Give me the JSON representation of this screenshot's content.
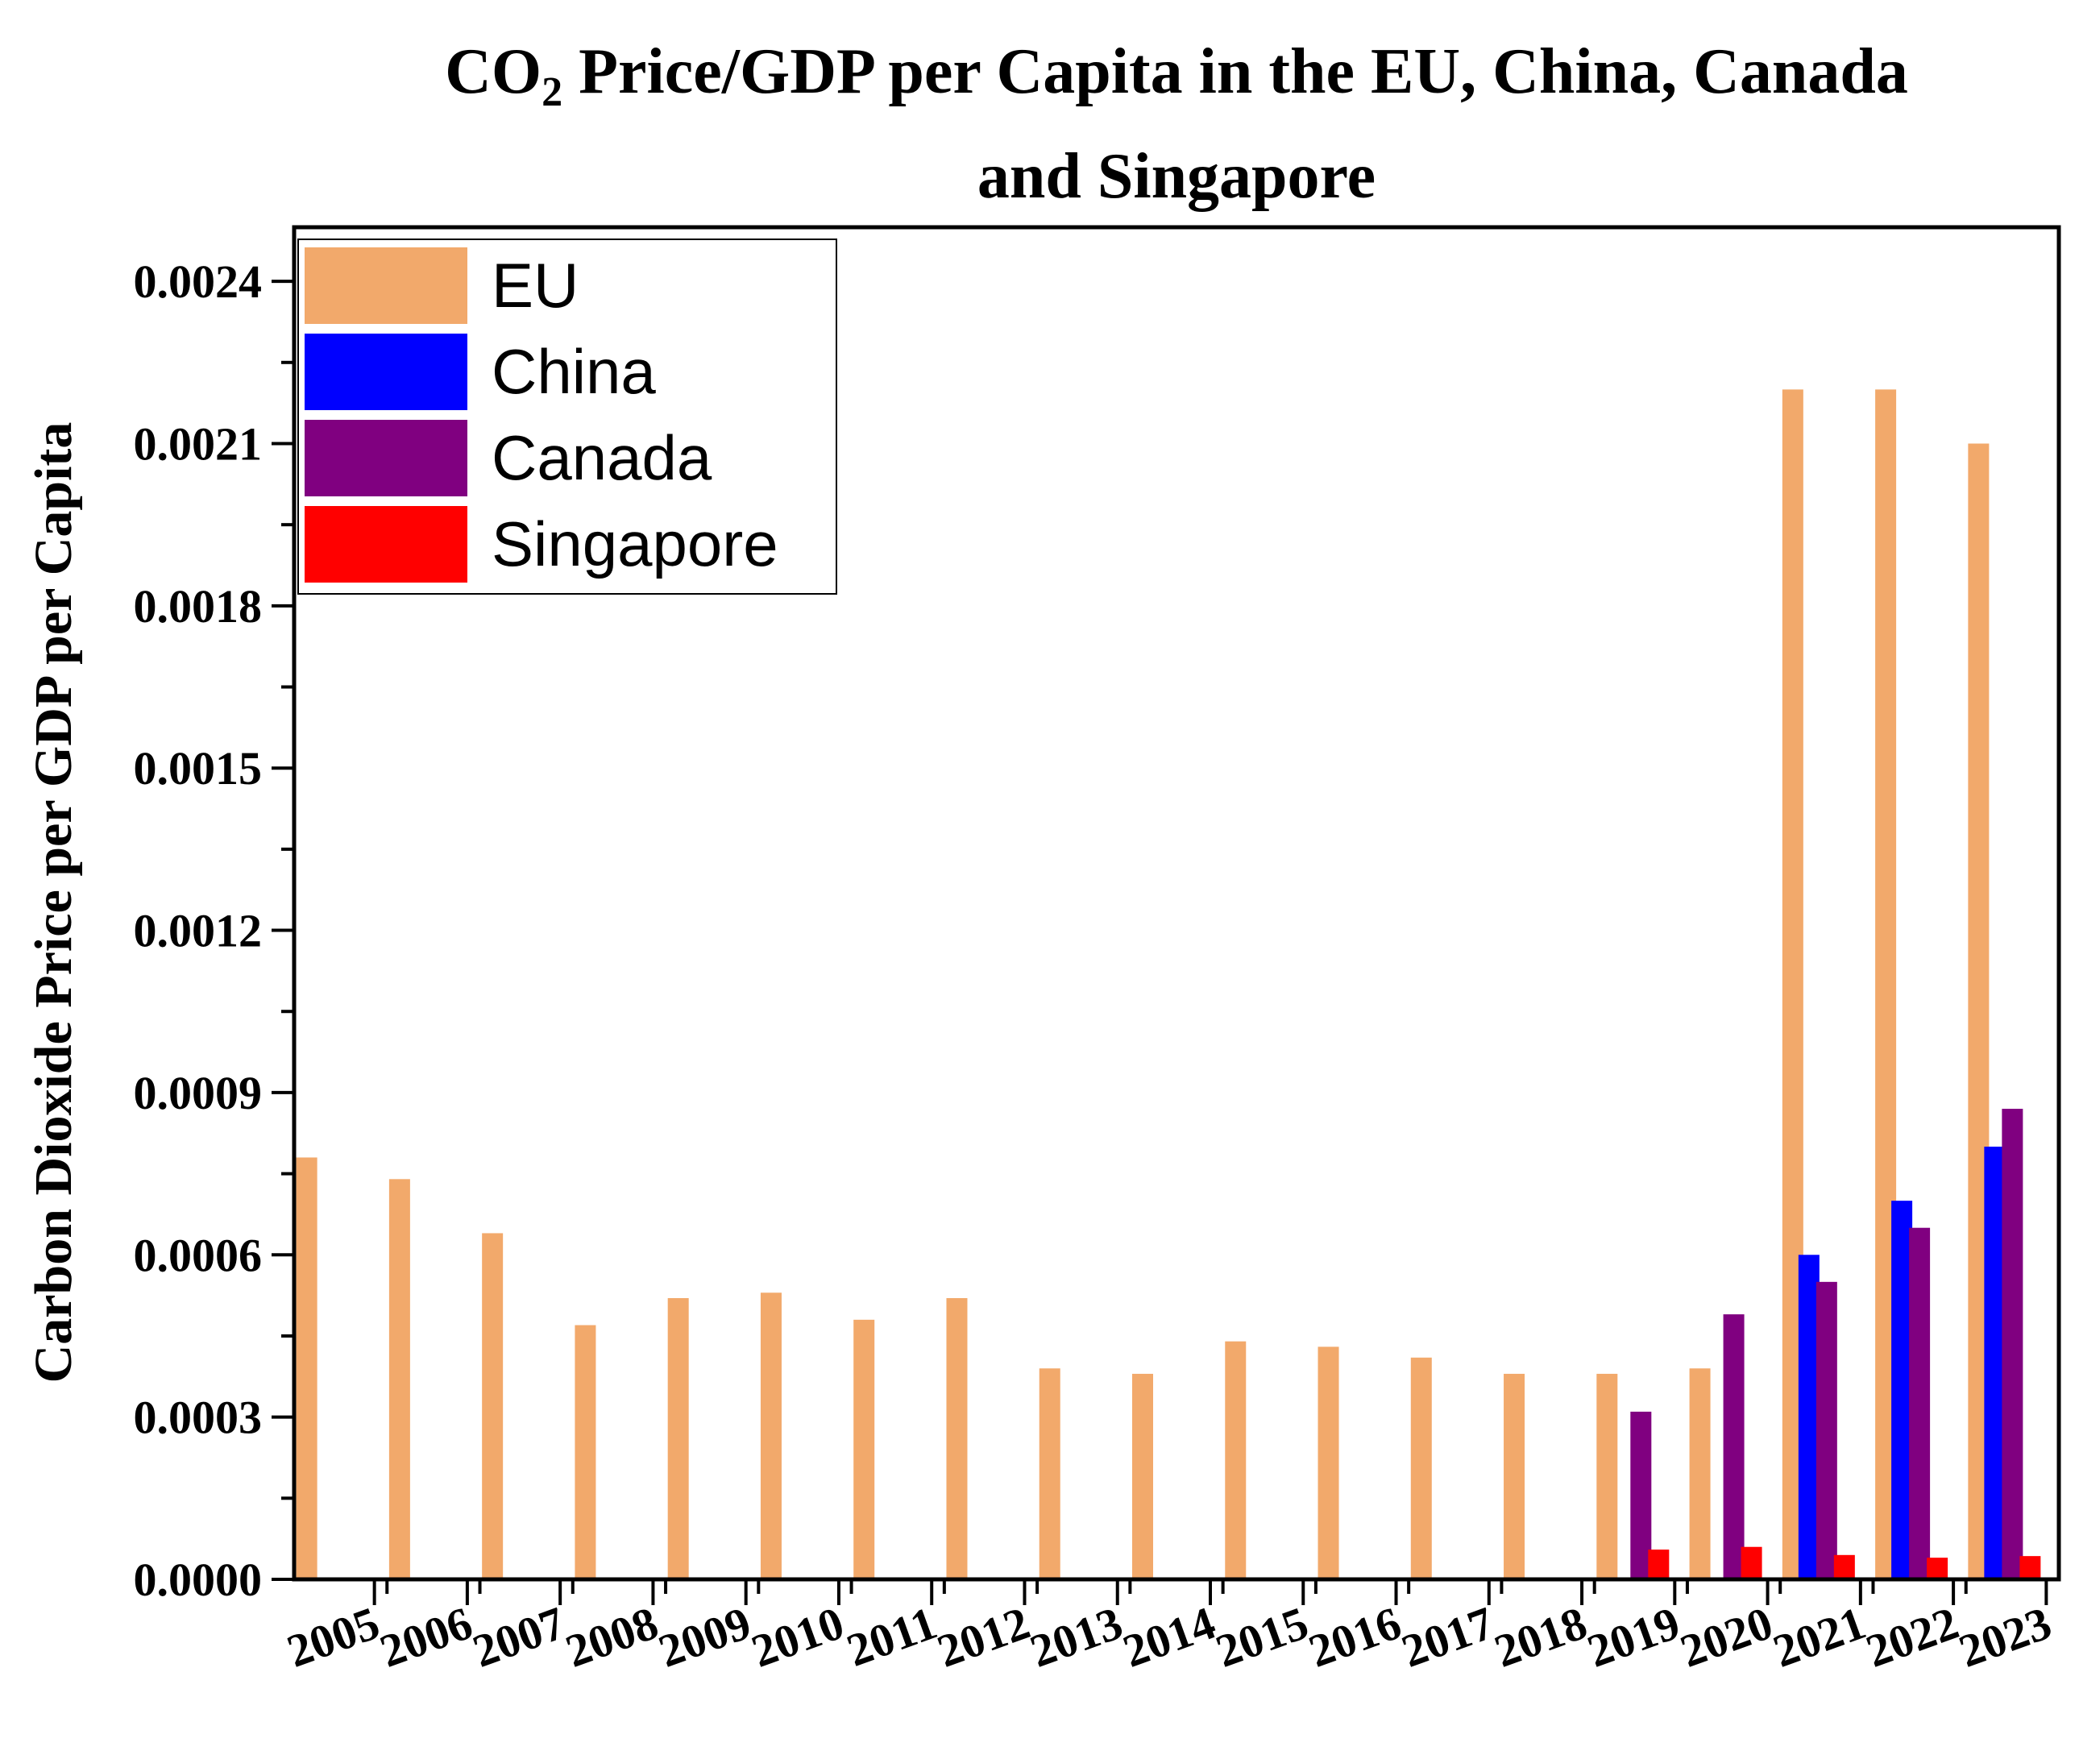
{
  "chart_data": {
    "type": "bar",
    "title_line1_main": "CO",
    "title_line1_sub": "2",
    "title_line1_rest": " Price/GDP per Capita in the EU, China, Canada",
    "title_line2": "and Singapore",
    "xlabel": "",
    "ylabel": "Carbon Dioxide Price per GDP per Capita",
    "ylim": [
      0,
      0.0025
    ],
    "yticks": [
      "0.0000",
      "0.0003",
      "0.0006",
      "0.0009",
      "0.0012",
      "0.0015",
      "0.0018",
      "0.0021",
      "0.0024"
    ],
    "categories": [
      "2005",
      "2006",
      "2007",
      "2008",
      "2009",
      "2010",
      "2011",
      "2012",
      "2013",
      "2014",
      "2015",
      "2016",
      "2017",
      "2018",
      "2019",
      "2020",
      "2021",
      "2022",
      "2023"
    ],
    "legend_position": "top-left",
    "series": [
      {
        "name": "EU",
        "color": "#F2A96B",
        "values": [
          0.00078,
          0.00074,
          0.00064,
          0.00047,
          0.00052,
          0.00053,
          0.00048,
          0.00052,
          0.00039,
          0.00038,
          0.00044,
          0.00043,
          0.00041,
          0.00038,
          0.00038,
          0.00039,
          0.0022,
          0.0022,
          0.0021
        ]
      },
      {
        "name": "China",
        "color": "#0000FF",
        "values": [
          null,
          null,
          null,
          null,
          null,
          null,
          null,
          null,
          null,
          null,
          null,
          null,
          null,
          null,
          null,
          null,
          0.0006,
          0.0007,
          0.0008
        ]
      },
      {
        "name": "Canada",
        "color": "#800080",
        "values": [
          null,
          null,
          null,
          null,
          null,
          null,
          null,
          null,
          null,
          null,
          null,
          null,
          null,
          null,
          0.00031,
          0.00049,
          0.00055,
          0.00065,
          0.00087
        ]
      },
      {
        "name": "Singapore",
        "color": "#FF0000",
        "values": [
          null,
          null,
          null,
          null,
          null,
          null,
          null,
          null,
          null,
          null,
          null,
          null,
          null,
          null,
          5.5e-05,
          6e-05,
          4.5e-05,
          4e-05,
          4.3e-05
        ]
      }
    ]
  }
}
